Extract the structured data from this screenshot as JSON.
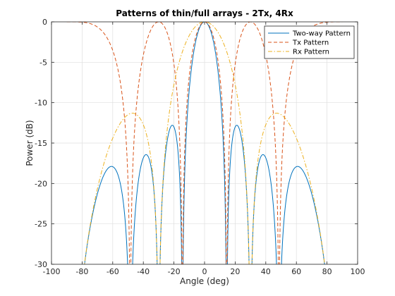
{
  "chart_data": {
    "type": "line",
    "title": "Patterns of thin/full arrays - 2Tx, 4Rx",
    "xlabel": "Angle (deg)",
    "ylabel": "Power (dB)",
    "xlim": [
      -100,
      100
    ],
    "ylim": [
      -30,
      0
    ],
    "xticks": [
      "-100",
      "-80",
      "-60",
      "-40",
      "-20",
      "0",
      "20",
      "40",
      "60",
      "80",
      "100"
    ],
    "yticks": [
      "0",
      "-5",
      "-10",
      "-15",
      "-20",
      "-25",
      "-30"
    ],
    "grid": true,
    "legend_position": "top-right",
    "series": [
      {
        "name": "Two-way Pattern",
        "color": "#0072BD",
        "style": "solid",
        "model": {
          "kind": "two-way",
          "tx_elements": 2,
          "rx_elements": 4,
          "tx_spacing_wavelengths": 2,
          "rx_spacing_wavelengths": 0.5
        },
        "x": [
          -90,
          -77,
          -70,
          -65,
          -61,
          -55,
          -50,
          -48.6,
          -45,
          -42,
          -38,
          -34,
          -30,
          -28,
          -25,
          -21,
          -18,
          -15,
          -14.5,
          -12,
          -8,
          -4,
          0,
          4,
          8,
          12,
          14.5,
          15,
          18,
          21,
          25,
          28,
          30,
          34,
          38,
          42,
          45,
          48.6,
          50,
          55,
          61,
          65,
          70,
          77,
          90
        ],
        "y": [
          -30,
          -30,
          -20.5,
          -18.5,
          -17.9,
          -19.6,
          -24.5,
          -30,
          -21.5,
          -17.5,
          -16.4,
          -18.5,
          -30,
          -18.5,
          -14.5,
          -12.9,
          -14.5,
          -21,
          -30,
          -13,
          -5.5,
          -1.3,
          0,
          -1.3,
          -5.5,
          -13,
          -30,
          -21,
          -14.5,
          -12.9,
          -14.5,
          -18.5,
          -30,
          -18.5,
          -16.4,
          -17.5,
          -21.5,
          -30,
          -24.5,
          -19.6,
          -17.9,
          -18.5,
          -20.5,
          -30,
          -30
        ]
      },
      {
        "name": "Tx Pattern",
        "color": "#D95319",
        "style": "dashed",
        "model": {
          "kind": "array-factor",
          "elements": 2,
          "spacing_wavelengths": 2
        },
        "x": [
          -90,
          -85,
          -80,
          -75,
          -70,
          -65,
          -60,
          -55,
          -52,
          -50,
          -48.6,
          -47,
          -45,
          -42,
          -40,
          -37,
          -35,
          -32,
          -30,
          -28,
          -26,
          -24,
          -22,
          -20,
          -18,
          -16,
          -14.5,
          -13,
          -10,
          -7,
          -4,
          0,
          4,
          7,
          10,
          13,
          14.5,
          16,
          18,
          20,
          22,
          24,
          26,
          28,
          30,
          32,
          35,
          37,
          40,
          42,
          45,
          47,
          48.6,
          50,
          52,
          55,
          60,
          65,
          70,
          75,
          80,
          85,
          90
        ],
        "y": [
          0,
          -0.1,
          -0.3,
          -0.6,
          -1.2,
          -2.2,
          -3.5,
          -5.8,
          -8.5,
          -12,
          -30,
          -13,
          -7.5,
          -4.2,
          -2.8,
          -1.4,
          -0.8,
          -0.2,
          0,
          -0.2,
          -0.9,
          -2.0,
          -3.6,
          -5.8,
          -8.9,
          -14.5,
          -30,
          -14.5,
          -6.6,
          -3.1,
          -1.1,
          0,
          -1.1,
          -3.1,
          -6.6,
          -14.5,
          -30,
          -14.5,
          -8.9,
          -5.8,
          -3.6,
          -2.0,
          -0.9,
          -0.2,
          0,
          -0.2,
          -0.8,
          -1.4,
          -2.8,
          -4.2,
          -7.5,
          -13,
          -30,
          -12,
          -8.5,
          -5.8,
          -3.5,
          -2.2,
          -1.2,
          -0.6,
          -0.3,
          -0.1,
          0
        ]
      },
      {
        "name": "Rx Pattern",
        "color": "#EDB120",
        "style": "dashdot",
        "model": {
          "kind": "array-factor",
          "elements": 4,
          "spacing_wavelengths": 0.5
        },
        "x": [
          -90,
          -80,
          -78,
          -75,
          -70,
          -65,
          -60,
          -55,
          -50,
          -46,
          -42,
          -38,
          -34,
          -30,
          -27,
          -25,
          -20,
          -15,
          -10,
          -5,
          0,
          5,
          10,
          15,
          20,
          25,
          27,
          30,
          34,
          38,
          42,
          46,
          50,
          55,
          60,
          65,
          70,
          75,
          78,
          80,
          90
        ],
        "y": [
          -30,
          -30,
          -25.5,
          -20.4,
          -16.9,
          -14.6,
          -12.9,
          -11.8,
          -11.3,
          -11.9,
          -14.2,
          -18.8,
          -27.3,
          -30,
          -21,
          -15.7,
          -9.6,
          -5.0,
          -2.1,
          -0.5,
          0,
          -0.5,
          -2.1,
          -5.0,
          -9.6,
          -15.7,
          -21,
          -30,
          -27.3,
          -18.8,
          -14.2,
          -11.9,
          -11.3,
          -11.8,
          -12.9,
          -14.6,
          -16.9,
          -20.4,
          -25.5,
          -30,
          -30
        ]
      }
    ]
  }
}
